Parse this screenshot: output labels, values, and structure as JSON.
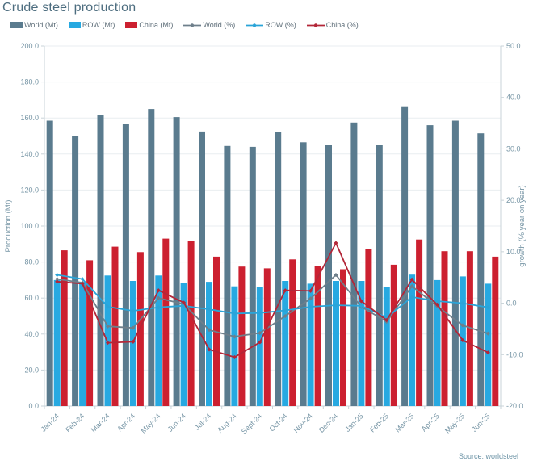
{
  "title": "Crude steel production",
  "source": "Source: worldsteel",
  "colors": {
    "world_bar": "#5a7b8e",
    "row_bar": "#27a9e1",
    "china_bar": "#cc2030",
    "world_line": "#6e7f8b",
    "row_line": "#2aa4d8",
    "china_line": "#b32638",
    "title_text": "#4d6d7f",
    "axis_text": "#7695a5",
    "legend_text": "#5d6d78",
    "grid": "#e9eef0",
    "axis_line": "#c9d3d8",
    "source_text": "#6991a4"
  },
  "legend": {
    "items": [
      {
        "label": "World (Mt)",
        "type": "bar",
        "color_key": "world_bar"
      },
      {
        "label": "ROW (Mt)",
        "type": "bar",
        "color_key": "row_bar"
      },
      {
        "label": "China (Mt)",
        "type": "bar",
        "color_key": "china_bar"
      },
      {
        "label": "World (%)",
        "type": "line",
        "color_key": "world_line"
      },
      {
        "label": "ROW (%)",
        "type": "line",
        "color_key": "row_line"
      },
      {
        "label": "China (%)",
        "type": "line",
        "color_key": "china_line"
      }
    ]
  },
  "chart_data": {
    "type": "bar+line",
    "title": "Crude steel production",
    "categories": [
      "Jan-24",
      "Feb-24",
      "Mar-24",
      "Apr-24",
      "May-24",
      "Jun-24",
      "Jul-24",
      "Aug-24",
      "Sept-24",
      "Oct-24",
      "Nov-24",
      "Dec-24",
      "Jan-25",
      "Feb-25",
      "Mar-25",
      "Apr-25",
      "May-25",
      "Jun-25"
    ],
    "bar_series": [
      {
        "name": "World (Mt)",
        "color_key": "world_bar",
        "values": [
          158.5,
          150.0,
          161.5,
          156.5,
          165.0,
          160.5,
          152.5,
          144.5,
          144.0,
          152.0,
          146.5,
          145.0,
          157.5,
          145.0,
          166.5,
          156.0,
          158.5,
          151.5
        ]
      },
      {
        "name": "ROW (Mt)",
        "color_key": "row_bar",
        "values": [
          70.0,
          69.0,
          72.5,
          69.5,
          72.5,
          68.5,
          69.0,
          66.5,
          66.0,
          69.5,
          68.0,
          69.5,
          69.5,
          66.0,
          73.0,
          70.0,
          72.0,
          68.0
        ]
      },
      {
        "name": "China (Mt)",
        "color_key": "china_bar",
        "values": [
          86.5,
          81.0,
          88.5,
          85.5,
          93.0,
          91.5,
          83.0,
          77.5,
          76.5,
          81.5,
          78.0,
          76.0,
          87.0,
          78.5,
          92.5,
          86.0,
          86.0,
          83.0
        ]
      }
    ],
    "line_series": [
      {
        "name": "World (%)",
        "color_key": "world_line",
        "values": [
          4.7,
          4.0,
          -4.5,
          -4.8,
          1.0,
          -0.2,
          -5.2,
          -6.5,
          -5.8,
          -2.5,
          0.9,
          5.5,
          -0.7,
          -3.6,
          3.3,
          -0.6,
          -4.3,
          -5.9
        ]
      },
      {
        "name": "ROW (%)",
        "color_key": "row_line",
        "values": [
          5.5,
          4.7,
          -0.7,
          -1.5,
          -0.8,
          -0.5,
          -1.2,
          -2.0,
          -1.9,
          -1.4,
          -0.7,
          -0.4,
          -0.5,
          -2.8,
          1.2,
          0.4,
          0.0,
          -0.8
        ]
      },
      {
        "name": "China (%)",
        "color_key": "china_line",
        "values": [
          4.2,
          3.8,
          -7.7,
          -7.5,
          2.5,
          0.1,
          -9.0,
          -10.5,
          -7.6,
          2.5,
          2.4,
          11.7,
          0.4,
          -3.3,
          4.6,
          -0.3,
          -7.2,
          -9.6
        ]
      }
    ],
    "left_axis": {
      "label": "Production (Mt)",
      "min": 0,
      "max": 200,
      "step": 20
    },
    "right_axis": {
      "label": "growth (% year on year)",
      "min": -20,
      "max": 50,
      "step": 10
    },
    "grid": "horizontal",
    "legend_position": "top"
  }
}
